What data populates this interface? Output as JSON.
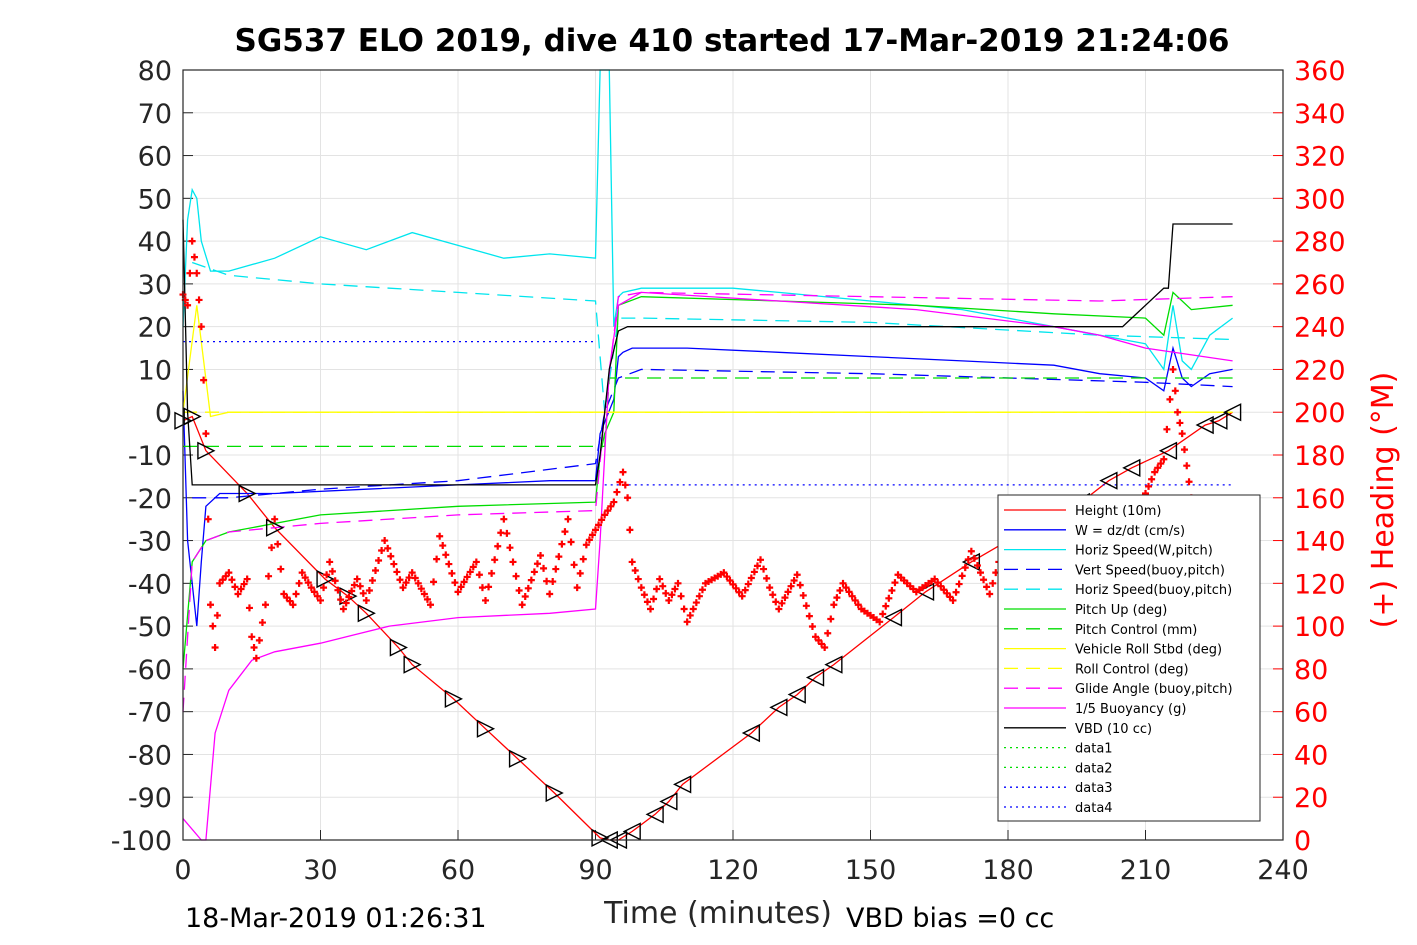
{
  "chart_data": {
    "type": "line",
    "title": "SG537 ELO 2019, dive 410 started 17-Mar-2019 21:24:06",
    "xlabel": "Time (minutes)",
    "ylabel_right": "(+) Heading (°M)",
    "xlim": [
      0,
      240
    ],
    "ylim": [
      -100,
      80
    ],
    "ylim_right": [
      0,
      360
    ],
    "x_ticks": [
      "0",
      "30",
      "60",
      "90",
      "120",
      "150",
      "180",
      "210",
      "240"
    ],
    "y_ticks": [
      "80",
      "70",
      "60",
      "50",
      "40",
      "30",
      "20",
      "10",
      "0",
      "-10",
      "-20",
      "-30",
      "-40",
      "-50",
      "-60",
      "-70",
      "-80",
      "-90",
      "-100"
    ],
    "y_right_ticks": [
      "360",
      "340",
      "320",
      "300",
      "280",
      "260",
      "240",
      "220",
      "200",
      "180",
      "160",
      "140",
      "120",
      "100",
      "80",
      "60",
      "40",
      "20",
      "0"
    ],
    "grid": true,
    "legend_position": "bottom-right",
    "end_time_label": "18-Mar-2019 01:26:31",
    "vbd_bias_label": "VBD bias =0 cc",
    "series": [
      {
        "name": "Height (10m)",
        "color": "#ff0000",
        "style": "solid",
        "x": [
          0,
          2,
          5,
          14,
          20,
          31,
          36,
          40,
          47,
          50,
          59,
          66,
          73,
          81,
          91,
          93,
          95,
          98,
          103,
          106,
          109,
          124,
          130,
          134,
          138,
          142,
          155,
          162,
          172,
          180,
          196,
          202,
          207,
          215,
          223,
          226,
          229
        ],
        "y": [
          -2,
          -1,
          -9,
          -19,
          -27,
          -39,
          -43,
          -47,
          -55,
          -59,
          -67,
          -74,
          -81,
          -89,
          -99.5,
          -100,
          -100,
          -98,
          -94,
          -91,
          -87,
          -75,
          -69,
          -66,
          -62,
          -59,
          -48,
          -42,
          -35,
          -30,
          -21,
          -16,
          -13,
          -9,
          -3,
          -2,
          0
        ]
      },
      {
        "name": "W = dz/dt (cm/s)",
        "color": "#0000ff",
        "style": "solid",
        "x": [
          0,
          1,
          3,
          4,
          5,
          8,
          20,
          40,
          60,
          80,
          90,
          91,
          94,
          95,
          96,
          98,
          110,
          130,
          150,
          170,
          190,
          200,
          210,
          214,
          216,
          218,
          220,
          224,
          229
        ],
        "y": [
          5,
          -30,
          -50,
          -35,
          -22,
          -19,
          -19,
          -18,
          -17,
          -16,
          -16,
          -5,
          3,
          13,
          14,
          15,
          15,
          14,
          13,
          12,
          11,
          9,
          8,
          5,
          15,
          8,
          6,
          9,
          10
        ]
      },
      {
        "name": "Horiz Speed(W,pitch)",
        "color": "#00e5ee",
        "style": "solid",
        "x": [
          0,
          1,
          2,
          3,
          4,
          6,
          10,
          20,
          30,
          40,
          50,
          60,
          70,
          80,
          90,
          91,
          92,
          93,
          94,
          95,
          96,
          100,
          110,
          120,
          130,
          150,
          170,
          190,
          200,
          210,
          214,
          216,
          218,
          220,
          224,
          229
        ],
        "y": [
          20,
          45,
          52,
          50,
          40,
          33,
          33,
          36,
          41,
          38,
          42,
          39,
          36,
          37,
          36,
          80,
          80,
          80,
          20,
          27,
          28,
          29,
          29,
          29,
          28,
          26,
          24,
          20,
          18,
          16,
          10,
          25,
          12,
          10,
          18,
          22
        ]
      },
      {
        "name": "Vert Speed(buoy,pitch)",
        "color": "#0000ff",
        "style": "dashed",
        "x": [
          2,
          5,
          10,
          30,
          60,
          90,
          92,
          95,
          100,
          150,
          210,
          229
        ],
        "y": [
          -20,
          -20,
          -20,
          -18,
          -16,
          -12,
          0,
          8,
          10,
          9,
          7,
          6
        ]
      },
      {
        "name": "Horiz Speed(buoy,pitch)",
        "color": "#00e5ee",
        "style": "dashed",
        "x": [
          2,
          10,
          30,
          60,
          90,
          92,
          95,
          100,
          150,
          200,
          229
        ],
        "y": [
          35,
          32,
          30,
          28,
          26,
          0,
          22,
          22,
          21,
          18,
          17
        ]
      },
      {
        "name": "Pitch Up (deg)",
        "color": "#00dd00",
        "style": "solid",
        "x": [
          0,
          2,
          5,
          10,
          30,
          60,
          90,
          91,
          92,
          94,
          95,
          100,
          130,
          160,
          190,
          210,
          214,
          216,
          220,
          229
        ],
        "y": [
          -60,
          -35,
          -30,
          -28,
          -24,
          -22,
          -21,
          -10,
          -5,
          0,
          25,
          27,
          26,
          25,
          23,
          22,
          18,
          28,
          24,
          25
        ]
      },
      {
        "name": "Pitch Control (mm)",
        "color": "#00dd00",
        "style": "dashed",
        "x": [
          0,
          5,
          90,
          92,
          93,
          95,
          210,
          229
        ],
        "y": [
          -8,
          -8,
          -8,
          -8,
          8,
          8,
          8,
          8
        ]
      },
      {
        "name": "Vehicle Roll Stbd (deg)",
        "color": "#ffff00",
        "style": "solid",
        "x": [
          0,
          3,
          6,
          10,
          90,
          92,
          95,
          100,
          150,
          200,
          229
        ],
        "y": [
          0,
          25,
          -1,
          0,
          0,
          0,
          0,
          0,
          0,
          0,
          0
        ]
      },
      {
        "name": "Roll Control (deg)",
        "color": "#ffff00",
        "style": "dashed",
        "x": [
          0,
          5,
          90,
          95,
          229
        ],
        "y": [
          0,
          0,
          0,
          0,
          0
        ]
      },
      {
        "name": "Glide Angle (buoy,pitch)",
        "color": "#ff00ff",
        "style": "dashed",
        "x": [
          0,
          2,
          5,
          10,
          30,
          60,
          90,
          92,
          95,
          100,
          150,
          200,
          229
        ],
        "y": [
          -70,
          -35,
          -30,
          -28,
          -26,
          -24,
          -23,
          0,
          27,
          28,
          27,
          26,
          27
        ]
      },
      {
        "name": "1/5 Buoyancy (g)",
        "color": "#ff00ff",
        "style": "solid",
        "x": [
          0,
          4,
          5,
          7,
          10,
          15,
          20,
          30,
          45,
          60,
          80,
          90,
          91,
          92,
          93,
          95,
          100,
          130,
          160,
          190,
          200,
          210,
          229
        ],
        "y": [
          -95,
          -100,
          -100,
          -75,
          -65,
          -58,
          -56,
          -54,
          -50,
          -48,
          -47,
          -46,
          -30,
          -10,
          10,
          25,
          28,
          26,
          24,
          20,
          18,
          15,
          12
        ]
      },
      {
        "name": "VBD (10 cc)",
        "color": "#000000",
        "style": "solid",
        "x": [
          0,
          1,
          2,
          3,
          90,
          91,
          92,
          93,
          95,
          97,
          190,
          191,
          205,
          206,
          214,
          215,
          216,
          229
        ],
        "y": [
          45,
          0,
          -17,
          -17,
          -17,
          -10,
          0,
          10,
          19,
          20,
          20,
          20,
          20,
          21,
          29,
          29,
          44,
          44
        ]
      },
      {
        "name": "data1",
        "color": "#00dd00",
        "style": "dotted",
        "x": [],
        "y": []
      },
      {
        "name": "data2",
        "color": "#00dd00",
        "style": "dotted",
        "x": [],
        "y": []
      },
      {
        "name": "data3",
        "color": "#0000ff",
        "style": "dotted",
        "x": [
          0,
          90
        ],
        "y": [
          16.5,
          16.5
        ]
      },
      {
        "name": "data4",
        "color": "#0000ff",
        "style": "dotted",
        "x": [
          92,
          229
        ],
        "y": [
          -17,
          -17
        ]
      }
    ],
    "heading_series": {
      "color": "#ff0000",
      "x": [
        0,
        1,
        2,
        3,
        4,
        5,
        6,
        7,
        8,
        10,
        12,
        14,
        15,
        16,
        18,
        20,
        22,
        24,
        26,
        28,
        30,
        32,
        35,
        38,
        40,
        44,
        48,
        50,
        54,
        56,
        60,
        64,
        66,
        70,
        74,
        78,
        80,
        84,
        86,
        88,
        90,
        92,
        94,
        96,
        97,
        98,
        100,
        102,
        104,
        106,
        108,
        110,
        114,
        118,
        122,
        126,
        128,
        130,
        134,
        138,
        140,
        142,
        144,
        148,
        152,
        156,
        160,
        164,
        168,
        172,
        176,
        180,
        184,
        186,
        190,
        194,
        198,
        202,
        206,
        210,
        212,
        214,
        216,
        217,
        218,
        219,
        220,
        221,
        222
      ],
      "y": [
        255,
        250,
        280,
        265,
        240,
        190,
        110,
        90,
        120,
        125,
        115,
        122,
        95,
        85,
        110,
        150,
        115,
        110,
        125,
        118,
        112,
        130,
        108,
        122,
        112,
        140,
        118,
        125,
        110,
        142,
        116,
        130,
        112,
        150,
        110,
        133,
        115,
        150,
        118,
        138,
        145,
        152,
        158,
        172,
        160,
        130,
        118,
        108,
        122,
        112,
        120,
        102,
        120,
        125,
        114,
        131,
        118,
        108,
        124,
        95,
        90,
        110,
        120,
        108,
        102,
        124,
        116,
        122,
        112,
        135,
        115,
        145,
        128,
        120,
        138,
        150,
        140,
        148,
        135,
        162,
        172,
        178,
        220,
        200,
        190,
        175,
        160,
        150,
        148
      ]
    }
  }
}
